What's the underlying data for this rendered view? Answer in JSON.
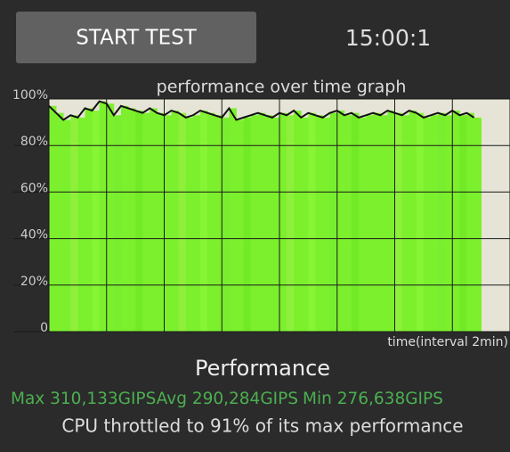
{
  "button": "START TEST",
  "timer": "15:00:1",
  "chart_data": {
    "type": "area",
    "title": "performance over time graph",
    "x_label": "time(interval 2min)",
    "x": [
      0,
      0.25,
      0.5,
      0.75,
      1,
      1.25,
      1.5,
      1.75,
      2,
      2.25,
      2.5,
      2.75,
      3,
      3.25,
      3.5,
      3.75,
      4,
      4.25,
      4.5,
      4.75,
      5,
      5.25,
      5.5,
      5.75,
      6,
      6.25,
      6.5,
      6.75,
      7,
      7.25,
      7.5,
      7.75,
      8,
      8.25,
      8.5,
      8.75,
      9,
      9.25,
      9.5,
      9.75,
      10,
      10.25,
      10.5,
      10.75,
      11,
      11.25,
      11.5,
      11.75,
      12,
      12.25,
      12.5,
      12.75,
      13,
      13.25,
      13.5,
      13.75,
      14,
      14.25,
      14.5,
      14.75
    ],
    "values": [
      97,
      94,
      91,
      93,
      92,
      96,
      95,
      99,
      98,
      93,
      97,
      96,
      95,
      94,
      96,
      94,
      93,
      95,
      94,
      92,
      93,
      95,
      94,
      93,
      92,
      96,
      91,
      92,
      93,
      94,
      93,
      92,
      94,
      93,
      95,
      92,
      94,
      93,
      92,
      94,
      95,
      93,
      94,
      92,
      93,
      94,
      93,
      95,
      94,
      93,
      95,
      94,
      92,
      93,
      94,
      93,
      95,
      93,
      94,
      92
    ],
    "color": "#7cf02c",
    "line_color": "#111111",
    "xlim": [
      0,
      16
    ],
    "xticks": [
      0,
      2,
      4,
      6,
      8,
      10,
      12,
      14,
      16
    ],
    "ylim": [
      0,
      100
    ],
    "yticks": [
      0,
      {
        "value": 20,
        "label": "20%"
      },
      {
        "value": 40,
        "label": "40%"
      },
      {
        "value": 60,
        "label": "60%"
      },
      {
        "value": 80,
        "label": "80%"
      },
      {
        "value": 100,
        "label": "100%"
      }
    ],
    "grid": true
  },
  "performance": {
    "heading": "Performance",
    "max": "Max 310,133GIPS",
    "avg": "Avg 290,284GIPS",
    "min": "Min 276,638GIPS"
  },
  "status": "CPU throttled to 91% of its max performance"
}
